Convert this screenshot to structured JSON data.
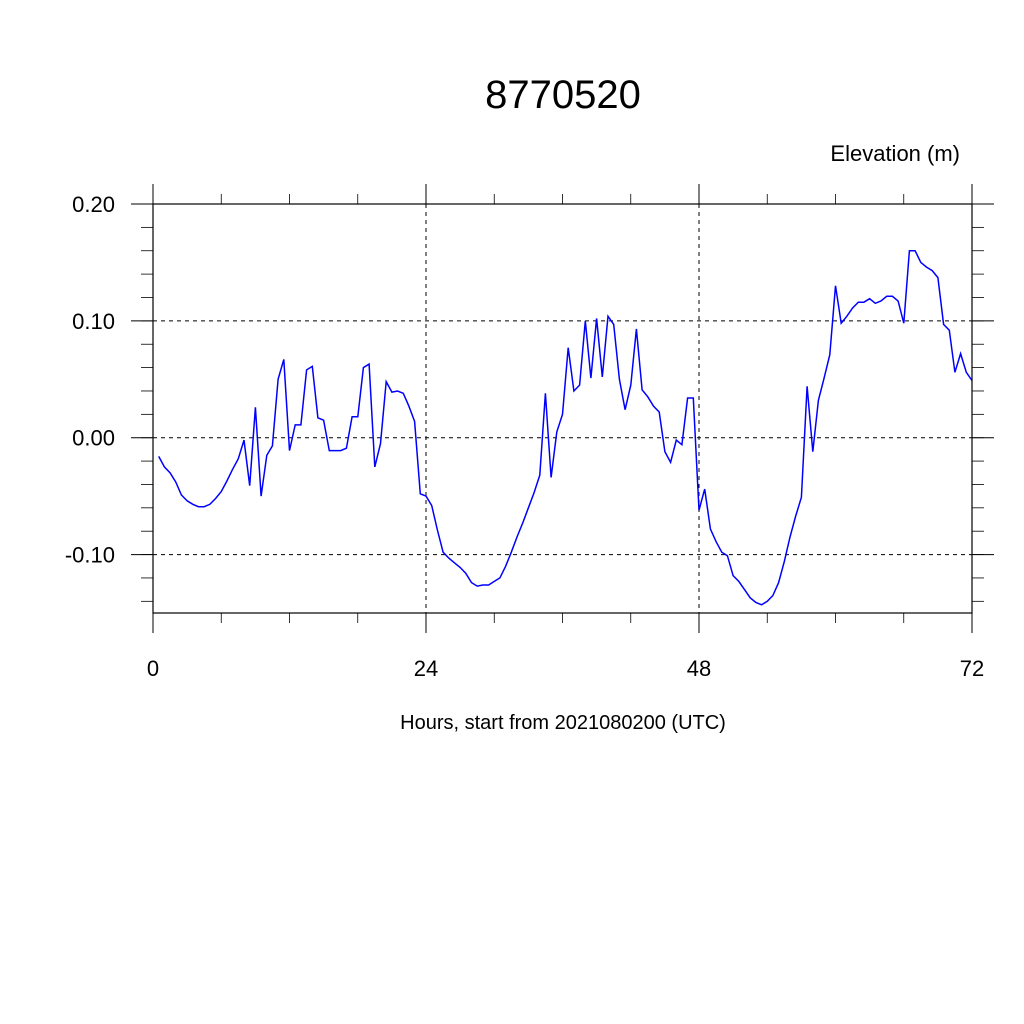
{
  "chart_data": {
    "type": "line",
    "title": "8770520",
    "ylabel": "Elevation (m)",
    "xlabel": "Hours, start from 2021080200 (UTC)",
    "xlim": [
      0,
      72
    ],
    "ylim": [
      -0.15,
      0.2
    ],
    "x_ticks": [
      0,
      24,
      48,
      72
    ],
    "x_tick_labels": [
      "0",
      "24",
      "48",
      "72"
    ],
    "y_ticks": [
      0.2,
      0.1,
      0.0,
      -0.1
    ],
    "y_tick_labels": [
      "0.20",
      "0.10",
      "0.00",
      "-0.10"
    ],
    "grid": "dashed at major ticks",
    "line_color": "#0000ff",
    "series": [
      {
        "x": [
          0.5,
          1,
          1.5,
          2,
          2.5,
          3,
          3.5,
          4,
          4.5,
          5,
          5.5,
          6,
          6.5,
          7,
          7.5,
          8,
          8.5,
          9,
          9.5,
          10,
          10.5,
          11,
          11.5,
          12,
          12.5,
          13,
          13.5,
          14,
          14.5,
          15,
          15.5,
          16,
          16.5,
          17,
          17.5,
          18,
          18.5,
          19,
          19.5,
          20,
          20.5,
          21,
          21.5,
          22,
          22.5,
          23,
          23.5,
          24,
          24.5,
          25,
          25.5,
          26,
          26.5,
          27,
          27.5,
          28,
          28.5,
          29,
          29.5,
          30,
          30.5,
          31,
          31.5,
          32,
          32.5,
          33,
          33.5,
          34,
          34.5,
          35,
          35.5,
          36,
          36.5,
          37,
          37.5,
          38,
          38.5,
          39,
          39.5,
          40,
          40.5,
          41,
          41.5,
          42,
          42.5,
          43,
          43.5,
          44,
          44.5,
          45,
          45.5,
          46,
          46.5,
          47,
          47.5,
          48,
          48.5,
          49,
          49.5,
          50,
          50.5,
          51,
          51.5,
          52,
          52.5,
          53,
          53.5,
          54,
          54.5,
          55,
          55.5,
          56,
          56.5,
          57,
          57.5,
          58,
          58.5,
          59,
          59.5,
          60,
          60.5,
          61,
          61.5,
          62,
          62.5,
          63,
          63.5,
          64,
          64.5,
          65,
          65.5,
          66,
          66.5,
          67,
          67.5,
          68,
          68.5,
          69,
          69.5,
          70,
          70.5,
          71,
          71.5,
          72
        ],
        "y": [
          -0.016,
          -0.025,
          -0.03,
          -0.038,
          -0.049,
          -0.054,
          -0.057,
          -0.059,
          -0.059,
          -0.057,
          -0.052,
          -0.046,
          -0.037,
          -0.027,
          -0.018,
          -0.002,
          -0.041,
          0.026,
          -0.05,
          -0.015,
          -0.007,
          0.05,
          0.067,
          -0.011,
          0.011,
          0.011,
          0.058,
          0.061,
          0.017,
          0.015,
          -0.011,
          -0.011,
          -0.011,
          -0.009,
          0.018,
          0.018,
          0.06,
          0.063,
          -0.025,
          -0.005,
          0.048,
          0.039,
          0.04,
          0.038,
          0.027,
          0.014,
          -0.048,
          -0.05,
          -0.058,
          -0.079,
          -0.098,
          -0.103,
          -0.107,
          -0.111,
          -0.116,
          -0.124,
          -0.127,
          -0.126,
          -0.126,
          -0.123,
          -0.12,
          -0.11,
          -0.098,
          -0.085,
          -0.073,
          -0.06,
          -0.047,
          -0.032,
          0.038,
          -0.034,
          0.005,
          0.02,
          0.077,
          0.04,
          0.045,
          0.1,
          0.051,
          0.102,
          0.052,
          0.104,
          0.097,
          0.05,
          0.024,
          0.045,
          0.093,
          0.041,
          0.035,
          0.027,
          0.022,
          -0.012,
          -0.021,
          -0.002,
          -0.006,
          0.034,
          0.034,
          -0.062,
          -0.044,
          -0.078,
          -0.089,
          -0.098,
          -0.101,
          -0.118,
          -0.123,
          -0.13,
          -0.137,
          -0.141,
          -0.143,
          -0.14,
          -0.135,
          -0.124,
          -0.106,
          -0.085,
          -0.067,
          -0.051,
          0.044,
          -0.012,
          0.032,
          0.051,
          0.071,
          0.13,
          0.098,
          0.104,
          0.111,
          0.116,
          0.116,
          0.119,
          0.115,
          0.117,
          0.121,
          0.121,
          0.117,
          0.098,
          0.16,
          0.16,
          0.15,
          0.146,
          0.143,
          0.137,
          0.097,
          0.092,
          0.056,
          0.072,
          0.056,
          0.049
        ]
      }
    ]
  }
}
